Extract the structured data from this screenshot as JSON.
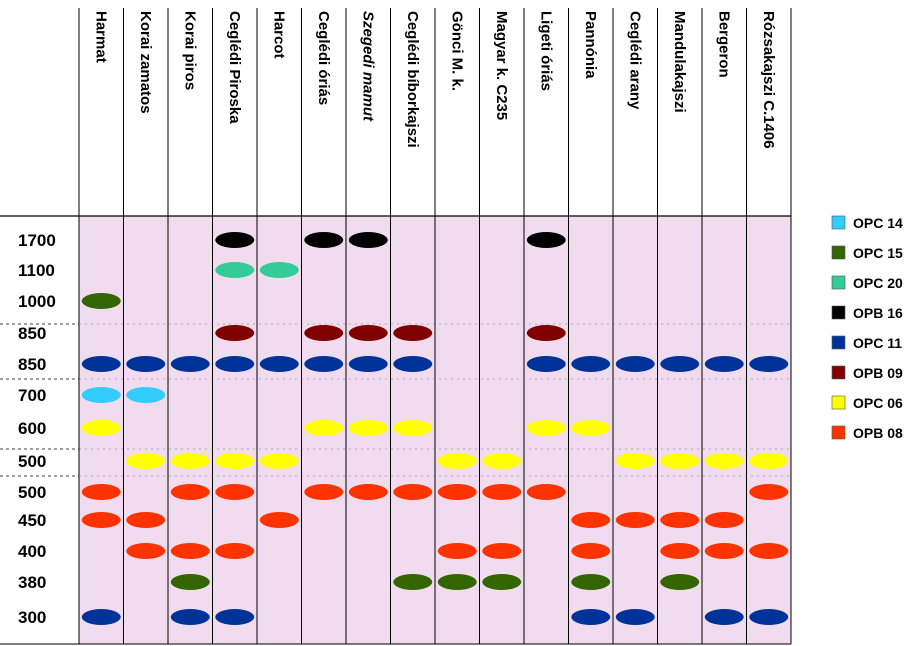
{
  "chart_data": {
    "type": "scatter",
    "title": "",
    "columns": [
      {
        "label": "Harmat",
        "italic": false
      },
      {
        "label": "Korai zamatos",
        "italic": false
      },
      {
        "label": "Korai piros",
        "italic": false
      },
      {
        "label": "Ceglédi Piroska",
        "italic": false
      },
      {
        "label": "Harcot",
        "italic": false
      },
      {
        "label": "Ceglédi óriás",
        "italic": false
      },
      {
        "label": "Szegedi mamut",
        "italic": true
      },
      {
        "label": "Ceglédi bíborkajszi",
        "italic": false
      },
      {
        "label": "Gönci M. k.",
        "italic": false
      },
      {
        "label": "Magyar k. C235",
        "italic": false
      },
      {
        "label": "Ligeti óriás",
        "italic": false
      },
      {
        "label": "Pannónia",
        "italic": false
      },
      {
        "label": "Ceglédi arany",
        "italic": false
      },
      {
        "label": "Mandulakajszi",
        "italic": false
      },
      {
        "label": "Bergeron",
        "italic": false
      },
      {
        "label": "Rózsakajszi C.1406",
        "italic": false
      }
    ],
    "rows": [
      {
        "label": "1700",
        "series": "OPB 16"
      },
      {
        "label": "1100",
        "series": "OPC 20"
      },
      {
        "label": "1000",
        "series": "OPC 15"
      },
      {
        "label": "850",
        "series": "OPB 09"
      },
      {
        "label": "850",
        "series": "OPC 11"
      },
      {
        "label": "700",
        "series": "OPC 14"
      },
      {
        "label": "600",
        "series": "OPC 06"
      },
      {
        "label": "500",
        "series": "OPC 06"
      },
      {
        "label": "500",
        "series": "OPB 08"
      },
      {
        "label": "450",
        "series": "OPB 08"
      },
      {
        "label": "400",
        "series": "OPB 08"
      },
      {
        "label": "380",
        "series": "OPC 15"
      },
      {
        "label": "300",
        "series": "OPC 11"
      }
    ],
    "legend": [
      {
        "name": "OPC 14",
        "color": "#33ccff"
      },
      {
        "name": "OPC 15",
        "color": "#336600"
      },
      {
        "name": "OPC 20",
        "color": "#33cc99"
      },
      {
        "name": "OPB 16",
        "color": "#000000"
      },
      {
        "name": "OPC 11",
        "color": "#003399"
      },
      {
        "name": "OPB 09",
        "color": "#800000"
      },
      {
        "name": "OPC 06",
        "color": "#ffff00"
      },
      {
        "name": "OPB 08",
        "color": "#ff3300"
      }
    ],
    "presence": [
      [
        0,
        3
      ],
      [
        0,
        5
      ],
      [
        0,
        6
      ],
      [
        0,
        10
      ],
      [
        1,
        3
      ],
      [
        1,
        4
      ],
      [
        2,
        0
      ],
      [
        3,
        3
      ],
      [
        3,
        5
      ],
      [
        3,
        6
      ],
      [
        3,
        7
      ],
      [
        3,
        10
      ],
      [
        4,
        0
      ],
      [
        4,
        1
      ],
      [
        4,
        2
      ],
      [
        4,
        3
      ],
      [
        4,
        4
      ],
      [
        4,
        5
      ],
      [
        4,
        6
      ],
      [
        4,
        7
      ],
      [
        4,
        10
      ],
      [
        4,
        11
      ],
      [
        4,
        12
      ],
      [
        4,
        13
      ],
      [
        4,
        14
      ],
      [
        4,
        15
      ],
      [
        5,
        0
      ],
      [
        5,
        1
      ],
      [
        6,
        0
      ],
      [
        6,
        5
      ],
      [
        6,
        6
      ],
      [
        6,
        7
      ],
      [
        6,
        10
      ],
      [
        6,
        11
      ],
      [
        7,
        1
      ],
      [
        7,
        2
      ],
      [
        7,
        3
      ],
      [
        7,
        4
      ],
      [
        7,
        8
      ],
      [
        7,
        9
      ],
      [
        7,
        12
      ],
      [
        7,
        13
      ],
      [
        7,
        14
      ],
      [
        7,
        15
      ],
      [
        8,
        0
      ],
      [
        8,
        2
      ],
      [
        8,
        3
      ],
      [
        8,
        5
      ],
      [
        8,
        6
      ],
      [
        8,
        7
      ],
      [
        8,
        8
      ],
      [
        8,
        9
      ],
      [
        8,
        10
      ],
      [
        8,
        15
      ],
      [
        9,
        0
      ],
      [
        9,
        1
      ],
      [
        9,
        4
      ],
      [
        9,
        11
      ],
      [
        9,
        12
      ],
      [
        9,
        13
      ],
      [
        9,
        14
      ],
      [
        10,
        1
      ],
      [
        10,
        2
      ],
      [
        10,
        3
      ],
      [
        10,
        8
      ],
      [
        10,
        9
      ],
      [
        10,
        11
      ],
      [
        10,
        13
      ],
      [
        10,
        14
      ],
      [
        10,
        15
      ],
      [
        11,
        2
      ],
      [
        11,
        7
      ],
      [
        11,
        8
      ],
      [
        11,
        9
      ],
      [
        11,
        11
      ],
      [
        11,
        13
      ],
      [
        12,
        0
      ],
      [
        12,
        2
      ],
      [
        12,
        3
      ],
      [
        12,
        11
      ],
      [
        12,
        12
      ],
      [
        12,
        14
      ],
      [
        12,
        15
      ]
    ],
    "series_colors": {
      "OPC 14": "#33ccff",
      "OPC 15": "#336600",
      "OPC 20": "#33cc99",
      "OPB 16": "#000000",
      "OPC 11": "#003399",
      "OPB 09": "#800000",
      "OPC 06": "#ffff00",
      "OPB 08": "#ff3300"
    },
    "band_color": "#f0dcee",
    "xlabel": "",
    "ylabel": ""
  }
}
